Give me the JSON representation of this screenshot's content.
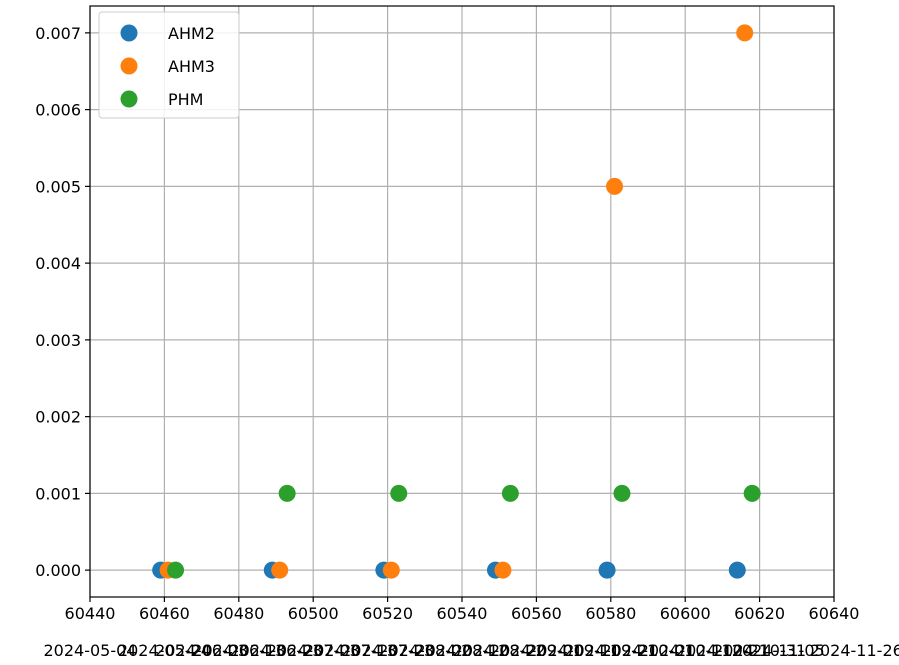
{
  "chart_data": {
    "type": "scatter",
    "title": "",
    "xlabel": "",
    "ylabel": "",
    "xlim": [
      60440,
      60640
    ],
    "ylim": [
      -0.00035,
      0.00735
    ],
    "xticks": [
      60440,
      60460,
      60480,
      60500,
      60520,
      60540,
      60560,
      60580,
      60600,
      60620,
      60640
    ],
    "xticks_secondary": [
      {
        "x": 60440,
        "label": "2024-05-04"
      },
      {
        "x": 60460,
        "label": "2024-05-24"
      },
      {
        "x": 60470,
        "label": "2024-06-03"
      },
      {
        "x": 60480,
        "label": "2024-06-13"
      },
      {
        "x": 60490,
        "label": "2024-06-23"
      },
      {
        "x": 60500,
        "label": "2024-07-03"
      },
      {
        "x": 60510,
        "label": "2024-07-13"
      },
      {
        "x": 60520,
        "label": "2024-07-23"
      },
      {
        "x": 60530,
        "label": "2024-08-02"
      },
      {
        "x": 60540,
        "label": "2024-08-12"
      },
      {
        "x": 60550,
        "label": "2024-08-22"
      },
      {
        "x": 60560,
        "label": "2024-09-01"
      },
      {
        "x": 60570,
        "label": "2024-09-11"
      },
      {
        "x": 60580,
        "label": "2024-09-21"
      },
      {
        "x": 60590,
        "label": "2024-10-01"
      },
      {
        "x": 60600,
        "label": "2024-10-11"
      },
      {
        "x": 60610,
        "label": "2024-10-21"
      },
      {
        "x": 60620,
        "label": "2024-10-31"
      },
      {
        "x": 60625,
        "label": "2024-11-05"
      },
      {
        "x": 60646,
        "label": "2024-11-26"
      }
    ],
    "yticks": [
      0.0,
      0.001,
      0.002,
      0.003,
      0.004,
      0.005,
      0.006,
      0.007
    ],
    "ytick_labels": [
      "0.000",
      "0.001",
      "0.002",
      "0.003",
      "0.004",
      "0.005",
      "0.006",
      "0.007"
    ],
    "grid": true,
    "legend": "top-left",
    "series": [
      {
        "name": "AHM2",
        "color": "#1f77b4",
        "x": [
          60459,
          60489,
          60519,
          60549,
          60579,
          60614
        ],
        "y": [
          0,
          0,
          0,
          0,
          0,
          0
        ]
      },
      {
        "name": "AHM3",
        "color": "#ff7f0e",
        "x": [
          60461,
          60491,
          60521,
          60551,
          60581,
          60616
        ],
        "y": [
          0,
          0,
          0,
          0,
          0.005,
          0.007
        ]
      },
      {
        "name": "PHM",
        "color": "#2ca02c",
        "x": [
          60463,
          60493,
          60523,
          60553,
          60583,
          60618
        ],
        "y": [
          0,
          0.001,
          0.001,
          0.001,
          0.001,
          0.001
        ]
      }
    ]
  }
}
